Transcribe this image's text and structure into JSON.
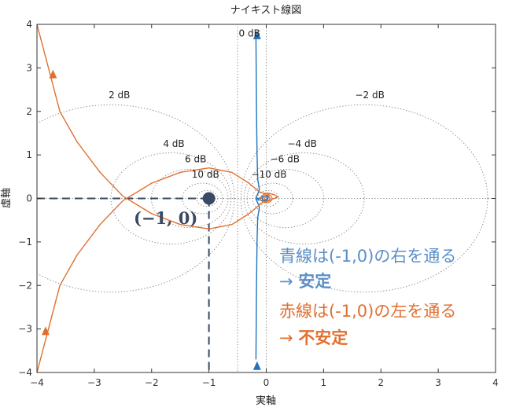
{
  "chart_data": {
    "type": "line",
    "title": "ナイキスト線図",
    "xlabel": "実軸",
    "ylabel": "虚軸",
    "xlim": [
      -4,
      4
    ],
    "ylim": [
      -4,
      4
    ],
    "xticks": [
      "−4",
      "−3",
      "−2",
      "−1",
      "0",
      "1",
      "2",
      "3",
      "4"
    ],
    "yticks": [
      "4",
      "3",
      "2",
      "1",
      "0",
      "−1",
      "−2",
      "−3",
      "−4"
    ],
    "grid": "m-circles",
    "m_circle_labels": [
      {
        "text": "0 dB",
        "x": -0.48,
        "y": 3.72
      },
      {
        "text": "2 dB",
        "x": -2.75,
        "y": 2.3
      },
      {
        "text": "4 dB",
        "x": -1.8,
        "y": 1.18
      },
      {
        "text": "6 dB",
        "x": -1.42,
        "y": 0.83
      },
      {
        "text": "10 dB",
        "x": -1.3,
        "y": 0.48
      },
      {
        "text": "−2 dB",
        "x": 1.55,
        "y": 2.3
      },
      {
        "text": "−4 dB",
        "x": 0.37,
        "y": 1.18
      },
      {
        "text": "−6 dB",
        "x": 0.07,
        "y": 0.83
      },
      {
        "text": "−10 dB",
        "x": -0.26,
        "y": 0.48
      }
    ],
    "critical_point": {
      "x": -1,
      "y": 0,
      "label": "(−1, 0)"
    },
    "series": [
      {
        "color": "#1f74bc",
        "x": [
          -0.18,
          -0.17,
          -0.16,
          -0.15,
          -0.12,
          -0.15,
          -0.18,
          -0.13,
          -0.05,
          0.02,
          0.05,
          0.02,
          -0.05,
          -0.13,
          -0.18,
          -0.15,
          -0.12,
          -0.15,
          -0.16,
          -0.17,
          -0.18
        ],
        "y": [
          3.7,
          2.0,
          1.0,
          0.45,
          0.2,
          0.1,
          0.02,
          -0.03,
          -0.05,
          0.0,
          0.05,
          0.07,
          0.05,
          0.0,
          -0.02,
          -0.1,
          -0.2,
          -0.45,
          -1.0,
          -2.0,
          -3.7
        ]
      },
      {
        "color": "#e07030",
        "x": [
          -4.0,
          -3.8,
          -3.6,
          -3.3,
          -2.9,
          -2.5,
          -2.0,
          -1.5,
          -1.0,
          -0.6,
          -0.3,
          -0.12,
          -0.05,
          0.02,
          0.1,
          0.2,
          0.15,
          0.05,
          -0.05,
          -0.12,
          -0.3,
          -0.6,
          -1.0,
          -1.5,
          -2.0,
          -2.5,
          -2.9,
          -3.3,
          -3.6,
          -3.8,
          -4.0
        ],
        "y": [
          4.0,
          3.0,
          2.0,
          1.3,
          0.6,
          0.05,
          -0.35,
          -0.6,
          -0.7,
          -0.6,
          -0.35,
          -0.15,
          -0.08,
          -0.07,
          -0.02,
          0.03,
          0.08,
          0.12,
          0.12,
          0.15,
          0.35,
          0.6,
          0.7,
          0.6,
          0.35,
          -0.05,
          -0.6,
          -1.3,
          -2.0,
          -3.0,
          -4.0
        ]
      }
    ],
    "arrows": [
      {
        "color": "#1f74bc",
        "x": -0.16,
        "y": 3.75
      },
      {
        "color": "#1f74bc",
        "x": -0.16,
        "y": -3.85
      },
      {
        "color": "#e07030",
        "x": -3.72,
        "y": 2.85
      },
      {
        "color": "#e07030",
        "x": -3.85,
        "y": -3.05
      }
    ]
  },
  "notes": {
    "blue_line1": "青線は(-1,0)の右を通る",
    "blue_line2_arrow": "→ ",
    "blue_line2_bold": "安定",
    "red_line1": "赤線は(-1,0)の左を通る",
    "red_line2_arrow": "→ ",
    "red_line2_bold": "不安定",
    "blue_color": "#5b8fc9",
    "red_color": "#e07030"
  }
}
